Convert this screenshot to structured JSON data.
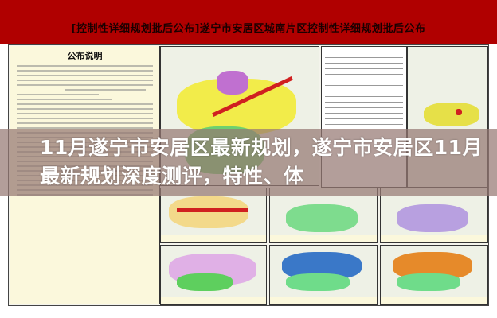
{
  "banner": {
    "title": "[控制性详细规划批后公布]遂宁市安居区城南片区控制性详细规划批后公布"
  },
  "document": {
    "title": "公布说明"
  },
  "overlay": {
    "headline": "11月遂宁市安居区最新规划，遂宁市安居区11月最新规划深度测评，特性、体"
  },
  "colors": {
    "banner": "#b00000",
    "overlay": "#96787380"
  }
}
